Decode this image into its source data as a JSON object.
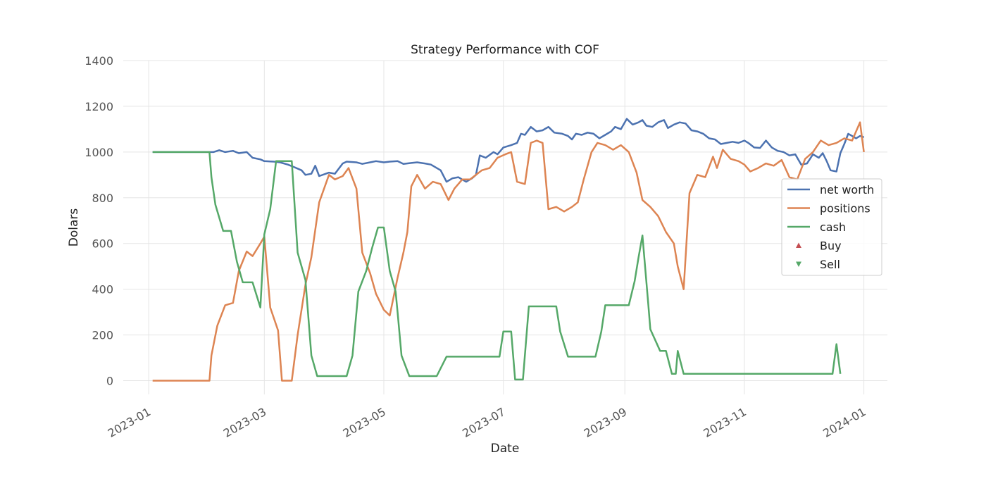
{
  "chart_data": {
    "type": "line",
    "title": "Strategy Performance with COF",
    "xlabel": "Date",
    "ylabel": "Dolars",
    "xlim": [
      "2022-12-19",
      "2024-01-13"
    ],
    "ylim": [
      -60,
      1400
    ],
    "yticks": [
      0,
      200,
      400,
      600,
      800,
      1000,
      1200,
      1400
    ],
    "xticks": [
      "2023-01",
      "2023-03",
      "2023-05",
      "2023-07",
      "2023-09",
      "2023-11",
      "2024-01"
    ],
    "grid": true,
    "legend": {
      "position": "right",
      "entries": [
        "net worth",
        "positions",
        "cash",
        "Buy",
        "Sell"
      ]
    },
    "colors": {
      "net_worth": "#4c72b0",
      "positions": "#dd8452",
      "cash": "#55a868",
      "buy": "#c44e52",
      "sell": "#55a868"
    },
    "series": [
      {
        "name": "net worth",
        "color": "#4c72b0",
        "points": [
          [
            "2023-01-03",
            1000
          ],
          [
            "2023-02-01",
            1000
          ],
          [
            "2023-02-03",
            1000
          ],
          [
            "2023-02-06",
            1008
          ],
          [
            "2023-02-09",
            1000
          ],
          [
            "2023-02-13",
            1005
          ],
          [
            "2023-02-16",
            995
          ],
          [
            "2023-02-20",
            1000
          ],
          [
            "2023-02-23",
            975
          ],
          [
            "2023-02-27",
            968
          ],
          [
            "2023-03-01",
            960
          ],
          [
            "2023-03-06",
            958
          ],
          [
            "2023-03-09",
            955
          ],
          [
            "2023-03-13",
            945
          ],
          [
            "2023-03-16",
            935
          ],
          [
            "2023-03-20",
            920
          ],
          [
            "2023-03-22",
            900
          ],
          [
            "2023-03-25",
            905
          ],
          [
            "2023-03-27",
            940
          ],
          [
            "2023-03-29",
            895
          ],
          [
            "2023-04-03",
            910
          ],
          [
            "2023-04-06",
            905
          ],
          [
            "2023-04-10",
            950
          ],
          [
            "2023-04-12",
            958
          ],
          [
            "2023-04-17",
            955
          ],
          [
            "2023-04-20",
            948
          ],
          [
            "2023-04-24",
            955
          ],
          [
            "2023-04-27",
            960
          ],
          [
            "2023-05-01",
            955
          ],
          [
            "2023-05-04",
            958
          ],
          [
            "2023-05-08",
            960
          ],
          [
            "2023-05-11",
            948
          ],
          [
            "2023-05-15",
            952
          ],
          [
            "2023-05-18",
            955
          ],
          [
            "2023-05-22",
            950
          ],
          [
            "2023-05-25",
            945
          ],
          [
            "2023-05-30",
            920
          ],
          [
            "2023-06-02",
            870
          ],
          [
            "2023-06-05",
            885
          ],
          [
            "2023-06-08",
            890
          ],
          [
            "2023-06-12",
            870
          ],
          [
            "2023-06-15",
            885
          ],
          [
            "2023-06-17",
            900
          ],
          [
            "2023-06-19",
            985
          ],
          [
            "2023-06-22",
            975
          ],
          [
            "2023-06-26",
            1000
          ],
          [
            "2023-06-28",
            990
          ],
          [
            "2023-07-01",
            1020
          ],
          [
            "2023-07-05",
            1030
          ],
          [
            "2023-07-08",
            1040
          ],
          [
            "2023-07-10",
            1080
          ],
          [
            "2023-07-12",
            1075
          ],
          [
            "2023-07-15",
            1110
          ],
          [
            "2023-07-18",
            1090
          ],
          [
            "2023-07-21",
            1095
          ],
          [
            "2023-07-24",
            1110
          ],
          [
            "2023-07-27",
            1085
          ],
          [
            "2023-07-31",
            1080
          ],
          [
            "2023-08-03",
            1070
          ],
          [
            "2023-08-05",
            1055
          ],
          [
            "2023-08-07",
            1080
          ],
          [
            "2023-08-10",
            1075
          ],
          [
            "2023-08-13",
            1085
          ],
          [
            "2023-08-16",
            1080
          ],
          [
            "2023-08-19",
            1060
          ],
          [
            "2023-08-22",
            1075
          ],
          [
            "2023-08-25",
            1090
          ],
          [
            "2023-08-27",
            1110
          ],
          [
            "2023-08-30",
            1100
          ],
          [
            "2023-09-02",
            1145
          ],
          [
            "2023-09-05",
            1120
          ],
          [
            "2023-09-08",
            1130
          ],
          [
            "2023-09-10",
            1140
          ],
          [
            "2023-09-12",
            1115
          ],
          [
            "2023-09-15",
            1110
          ],
          [
            "2023-09-18",
            1130
          ],
          [
            "2023-09-21",
            1140
          ],
          [
            "2023-09-23",
            1105
          ],
          [
            "2023-09-26",
            1120
          ],
          [
            "2023-09-29",
            1130
          ],
          [
            "2023-10-02",
            1125
          ],
          [
            "2023-10-05",
            1095
          ],
          [
            "2023-10-08",
            1090
          ],
          [
            "2023-10-11",
            1080
          ],
          [
            "2023-10-14",
            1060
          ],
          [
            "2023-10-17",
            1055
          ],
          [
            "2023-10-20",
            1035
          ],
          [
            "2023-10-23",
            1040
          ],
          [
            "2023-10-26",
            1045
          ],
          [
            "2023-10-29",
            1040
          ],
          [
            "2023-11-01",
            1050
          ],
          [
            "2023-11-03",
            1040
          ],
          [
            "2023-11-06",
            1020
          ],
          [
            "2023-11-09",
            1018
          ],
          [
            "2023-11-12",
            1050
          ],
          [
            "2023-11-15",
            1020
          ],
          [
            "2023-11-18",
            1005
          ],
          [
            "2023-11-21",
            1000
          ],
          [
            "2023-11-24",
            985
          ],
          [
            "2023-11-27",
            990
          ],
          [
            "2023-11-30",
            945
          ],
          [
            "2023-12-03",
            950
          ],
          [
            "2023-12-06",
            990
          ],
          [
            "2023-12-09",
            975
          ],
          [
            "2023-12-11",
            995
          ],
          [
            "2023-12-13",
            960
          ],
          [
            "2023-12-15",
            920
          ],
          [
            "2023-12-18",
            915
          ],
          [
            "2023-12-20",
            995
          ],
          [
            "2023-12-22",
            1035
          ],
          [
            "2023-12-24",
            1080
          ],
          [
            "2023-12-26",
            1070
          ],
          [
            "2023-12-28",
            1060
          ],
          [
            "2023-12-30",
            1070
          ],
          [
            "2024-01-01",
            1065
          ]
        ]
      },
      {
        "name": "positions",
        "color": "#dd8452",
        "points": [
          [
            "2023-01-03",
            0
          ],
          [
            "2023-02-01",
            0
          ],
          [
            "2023-02-02",
            110
          ],
          [
            "2023-02-05",
            240
          ],
          [
            "2023-02-09",
            330
          ],
          [
            "2023-02-13",
            340
          ],
          [
            "2023-02-16",
            480
          ],
          [
            "2023-02-20",
            565
          ],
          [
            "2023-02-23",
            545
          ],
          [
            "2023-02-27",
            600
          ],
          [
            "2023-03-01",
            630
          ],
          [
            "2023-03-04",
            320
          ],
          [
            "2023-03-08",
            220
          ],
          [
            "2023-03-10",
            0
          ],
          [
            "2023-03-15",
            0
          ],
          [
            "2023-03-18",
            200
          ],
          [
            "2023-03-22",
            420
          ],
          [
            "2023-03-25",
            540
          ],
          [
            "2023-03-29",
            780
          ],
          [
            "2023-04-03",
            900
          ],
          [
            "2023-04-06",
            880
          ],
          [
            "2023-04-10",
            895
          ],
          [
            "2023-04-13",
            930
          ],
          [
            "2023-04-17",
            840
          ],
          [
            "2023-04-20",
            560
          ],
          [
            "2023-04-24",
            470
          ],
          [
            "2023-04-27",
            380
          ],
          [
            "2023-05-01",
            310
          ],
          [
            "2023-05-04",
            285
          ],
          [
            "2023-05-08",
            450
          ],
          [
            "2023-05-11",
            560
          ],
          [
            "2023-05-13",
            650
          ],
          [
            "2023-05-15",
            850
          ],
          [
            "2023-05-18",
            900
          ],
          [
            "2023-05-22",
            840
          ],
          [
            "2023-05-26",
            870
          ],
          [
            "2023-05-30",
            860
          ],
          [
            "2023-06-03",
            790
          ],
          [
            "2023-06-06",
            840
          ],
          [
            "2023-06-10",
            880
          ],
          [
            "2023-06-14",
            880
          ],
          [
            "2023-06-17",
            900
          ],
          [
            "2023-06-20",
            920
          ],
          [
            "2023-06-24",
            930
          ],
          [
            "2023-06-28",
            975
          ],
          [
            "2023-07-02",
            990
          ],
          [
            "2023-07-05",
            1000
          ],
          [
            "2023-07-08",
            870
          ],
          [
            "2023-07-12",
            860
          ],
          [
            "2023-07-15",
            1040
          ],
          [
            "2023-07-18",
            1050
          ],
          [
            "2023-07-21",
            1040
          ],
          [
            "2023-07-24",
            750
          ],
          [
            "2023-07-28",
            760
          ],
          [
            "2023-08-01",
            740
          ],
          [
            "2023-08-05",
            760
          ],
          [
            "2023-08-08",
            780
          ],
          [
            "2023-08-11",
            880
          ],
          [
            "2023-08-15",
            1000
          ],
          [
            "2023-08-18",
            1040
          ],
          [
            "2023-08-22",
            1030
          ],
          [
            "2023-08-26",
            1010
          ],
          [
            "2023-08-30",
            1030
          ],
          [
            "2023-09-03",
            1000
          ],
          [
            "2023-09-07",
            910
          ],
          [
            "2023-09-10",
            790
          ],
          [
            "2023-09-14",
            760
          ],
          [
            "2023-09-18",
            720
          ],
          [
            "2023-09-22",
            650
          ],
          [
            "2023-09-26",
            600
          ],
          [
            "2023-09-28",
            500
          ],
          [
            "2023-10-01",
            400
          ],
          [
            "2023-10-04",
            820
          ],
          [
            "2023-10-08",
            900
          ],
          [
            "2023-10-12",
            890
          ],
          [
            "2023-10-16",
            980
          ],
          [
            "2023-10-18",
            930
          ],
          [
            "2023-10-21",
            1010
          ],
          [
            "2023-10-25",
            970
          ],
          [
            "2023-10-29",
            960
          ],
          [
            "2023-11-01",
            945
          ],
          [
            "2023-11-04",
            915
          ],
          [
            "2023-11-08",
            930
          ],
          [
            "2023-11-12",
            950
          ],
          [
            "2023-11-16",
            940
          ],
          [
            "2023-11-20",
            965
          ],
          [
            "2023-11-24",
            890
          ],
          [
            "2023-11-28",
            880
          ],
          [
            "2023-12-02",
            970
          ],
          [
            "2023-12-06",
            1000
          ],
          [
            "2023-12-10",
            1050
          ],
          [
            "2023-12-14",
            1030
          ],
          [
            "2023-12-18",
            1040
          ],
          [
            "2023-12-22",
            1060
          ],
          [
            "2023-12-26",
            1050
          ],
          [
            "2023-12-30",
            1130
          ],
          [
            "2024-01-01",
            1000
          ]
        ]
      },
      {
        "name": "cash",
        "color": "#55a868",
        "points": [
          [
            "2023-01-03",
            1000
          ],
          [
            "2023-02-01",
            1000
          ],
          [
            "2023-02-02",
            890
          ],
          [
            "2023-02-04",
            770
          ],
          [
            "2023-02-08",
            655
          ],
          [
            "2023-02-12",
            655
          ],
          [
            "2023-02-15",
            520
          ],
          [
            "2023-02-18",
            430
          ],
          [
            "2023-02-23",
            430
          ],
          [
            "2023-02-27",
            320
          ],
          [
            "2023-03-01",
            640
          ],
          [
            "2023-03-04",
            750
          ],
          [
            "2023-03-07",
            960
          ],
          [
            "2023-03-12",
            960
          ],
          [
            "2023-03-15",
            960
          ],
          [
            "2023-03-18",
            560
          ],
          [
            "2023-03-22",
            440
          ],
          [
            "2023-03-25",
            110
          ],
          [
            "2023-03-28",
            20
          ],
          [
            "2023-04-12",
            20
          ],
          [
            "2023-04-15",
            110
          ],
          [
            "2023-04-18",
            390
          ],
          [
            "2023-04-22",
            480
          ],
          [
            "2023-04-25",
            580
          ],
          [
            "2023-04-28",
            670
          ],
          [
            "2023-05-01",
            670
          ],
          [
            "2023-05-04",
            480
          ],
          [
            "2023-05-07",
            390
          ],
          [
            "2023-05-08",
            300
          ],
          [
            "2023-05-10",
            110
          ],
          [
            "2023-05-14",
            20
          ],
          [
            "2023-05-28",
            20
          ],
          [
            "2023-06-02",
            105
          ],
          [
            "2023-06-29",
            105
          ],
          [
            "2023-07-01",
            215
          ],
          [
            "2023-07-05",
            215
          ],
          [
            "2023-07-07",
            5
          ],
          [
            "2023-07-11",
            5
          ],
          [
            "2023-07-14",
            325
          ],
          [
            "2023-07-28",
            325
          ],
          [
            "2023-07-30",
            215
          ],
          [
            "2023-08-03",
            105
          ],
          [
            "2023-08-17",
            105
          ],
          [
            "2023-08-20",
            215
          ],
          [
            "2023-08-22",
            330
          ],
          [
            "2023-09-03",
            330
          ],
          [
            "2023-09-06",
            435
          ],
          [
            "2023-09-08",
            540
          ],
          [
            "2023-09-10",
            635
          ],
          [
            "2023-09-13",
            330
          ],
          [
            "2023-09-14",
            225
          ],
          [
            "2023-09-19",
            130
          ],
          [
            "2023-09-22",
            130
          ],
          [
            "2023-09-25",
            30
          ],
          [
            "2023-09-27",
            30
          ],
          [
            "2023-09-28",
            130
          ],
          [
            "2023-10-01",
            30
          ],
          [
            "2023-12-16",
            30
          ],
          [
            "2023-12-18",
            160
          ],
          [
            "2023-12-20",
            30
          ]
        ]
      }
    ],
    "markers": {
      "buy": [],
      "sell": []
    }
  }
}
